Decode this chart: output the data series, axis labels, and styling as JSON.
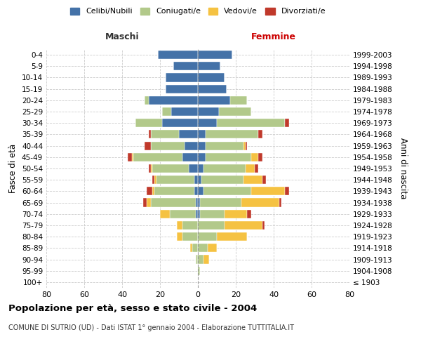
{
  "age_groups": [
    "100+",
    "95-99",
    "90-94",
    "85-89",
    "80-84",
    "75-79",
    "70-74",
    "65-69",
    "60-64",
    "55-59",
    "50-54",
    "45-49",
    "40-44",
    "35-39",
    "30-34",
    "25-29",
    "20-24",
    "15-19",
    "10-14",
    "5-9",
    "0-4"
  ],
  "birth_years": [
    "≤ 1903",
    "1904-1908",
    "1909-1913",
    "1914-1918",
    "1919-1923",
    "1924-1928",
    "1929-1933",
    "1934-1938",
    "1939-1943",
    "1944-1948",
    "1949-1953",
    "1954-1958",
    "1959-1963",
    "1964-1968",
    "1969-1973",
    "1974-1978",
    "1979-1983",
    "1984-1988",
    "1989-1993",
    "1994-1998",
    "1999-2003"
  ],
  "male": {
    "celibe": [
      0,
      0,
      0,
      0,
      0,
      0,
      1,
      1,
      2,
      2,
      5,
      8,
      7,
      10,
      19,
      14,
      26,
      17,
      17,
      13,
      21
    ],
    "coniugato": [
      0,
      0,
      1,
      3,
      8,
      8,
      14,
      24,
      21,
      20,
      19,
      26,
      18,
      15,
      14,
      5,
      2,
      0,
      0,
      0,
      0
    ],
    "vedovo": [
      0,
      0,
      0,
      1,
      3,
      3,
      5,
      2,
      1,
      1,
      1,
      1,
      0,
      0,
      0,
      0,
      0,
      0,
      0,
      0,
      0
    ],
    "divorziato": [
      0,
      0,
      0,
      0,
      0,
      0,
      0,
      2,
      3,
      1,
      1,
      2,
      3,
      1,
      0,
      0,
      0,
      0,
      0,
      0,
      0
    ]
  },
  "female": {
    "nubile": [
      0,
      0,
      0,
      0,
      0,
      0,
      1,
      1,
      3,
      2,
      3,
      4,
      4,
      4,
      10,
      11,
      17,
      15,
      14,
      12,
      18
    ],
    "coniugata": [
      0,
      1,
      3,
      5,
      10,
      14,
      13,
      22,
      25,
      22,
      22,
      24,
      20,
      28,
      36,
      17,
      9,
      0,
      0,
      0,
      0
    ],
    "vedova": [
      0,
      0,
      3,
      5,
      16,
      20,
      12,
      20,
      18,
      10,
      5,
      4,
      1,
      0,
      0,
      0,
      0,
      0,
      0,
      0,
      0
    ],
    "divorziata": [
      0,
      0,
      0,
      0,
      0,
      1,
      2,
      1,
      2,
      2,
      2,
      2,
      1,
      2,
      2,
      0,
      0,
      0,
      0,
      0,
      0
    ]
  },
  "colors": {
    "celibe": "#4472a8",
    "coniugato": "#b2c98a",
    "vedovo": "#f5c242",
    "divorziato": "#c0392b"
  },
  "xlim": 80,
  "title": "Popolazione per età, sesso e stato civile - 2004",
  "subtitle": "COMUNE DI SUTRIO (UD) - Dati ISTAT 1° gennaio 2004 - Elaborazione TUTTITALIA.IT",
  "ylabel_left": "Fasce di età",
  "ylabel_right": "Anni di nascita",
  "xlabel_left": "Maschi",
  "xlabel_right": "Femmine",
  "legend_labels": [
    "Celibi/Nubili",
    "Coniugati/e",
    "Vedovi/e",
    "Divorziati/e"
  ],
  "background_color": "#ffffff",
  "grid_color": "#cccccc"
}
